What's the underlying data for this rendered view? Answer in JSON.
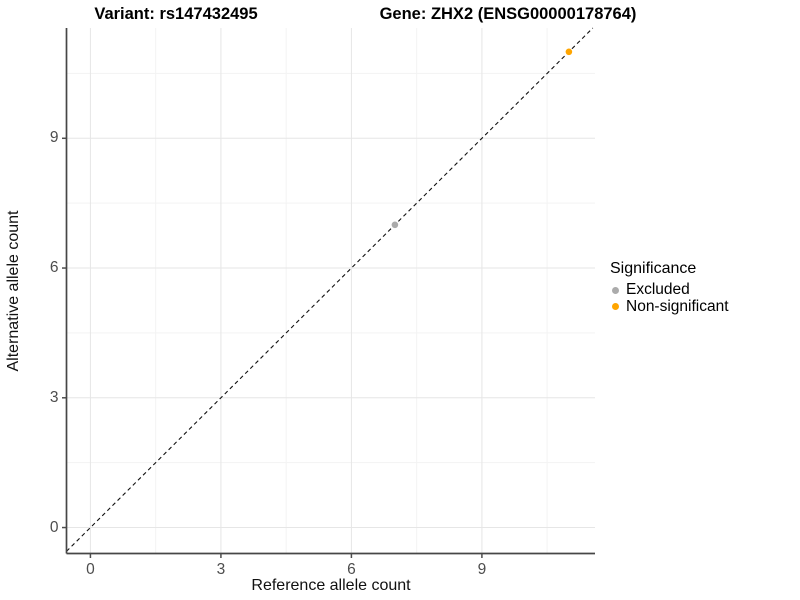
{
  "titles": {
    "variant": "Variant: rs147432495",
    "gene": "Gene: ZHX2 (ENSG00000178764)"
  },
  "axes": {
    "x": {
      "label": "Reference allele count",
      "tick_labels": [
        "0",
        "3",
        "6",
        "9"
      ]
    },
    "y": {
      "label": "Alternative allele count",
      "tick_labels": [
        "0",
        "3",
        "6",
        "9"
      ]
    }
  },
  "legend": {
    "title": "Significance",
    "items": [
      {
        "label": "Excluded",
        "color": "#ABABAB"
      },
      {
        "label": "Non-significant",
        "color": "#FFA500"
      }
    ]
  },
  "colors": {
    "axis_line": "#464646",
    "tick_mark": "#4d4d4d",
    "grid_major": "#E6E6E6",
    "grid_minor": "#F3F3F3",
    "reference_line": "#111111",
    "background": "#ffffff"
  },
  "chart_data": {
    "type": "scatter",
    "title": "Variant: rs147432495 | Gene: ZHX2 (ENSG00000178764)",
    "xlabel": "Reference allele count",
    "ylabel": "Alternative allele count",
    "xlim": [
      -0.55,
      11.6
    ],
    "ylim": [
      -0.6,
      11.55
    ],
    "x_ticks": [
      0,
      3,
      6,
      9
    ],
    "y_ticks": [
      0,
      3,
      6,
      9
    ],
    "x_minor_ticks": [
      1.5,
      4.5,
      7.5,
      10.5
    ],
    "y_minor_ticks": [
      1.5,
      4.5,
      7.5,
      10.5
    ],
    "grid": "major+minor",
    "legend_position": "right",
    "legend_title": "Significance",
    "reference_line": {
      "type": "abline",
      "slope": 1,
      "intercept": 0,
      "style": "dashed",
      "color": "#111111"
    },
    "series": [
      {
        "name": "Excluded",
        "color": "#ABABAB",
        "points": [
          {
            "x": 7,
            "y": 7
          }
        ]
      },
      {
        "name": "Non-significant",
        "color": "#FFA500",
        "points": [
          {
            "x": 11,
            "y": 11
          }
        ]
      }
    ]
  }
}
